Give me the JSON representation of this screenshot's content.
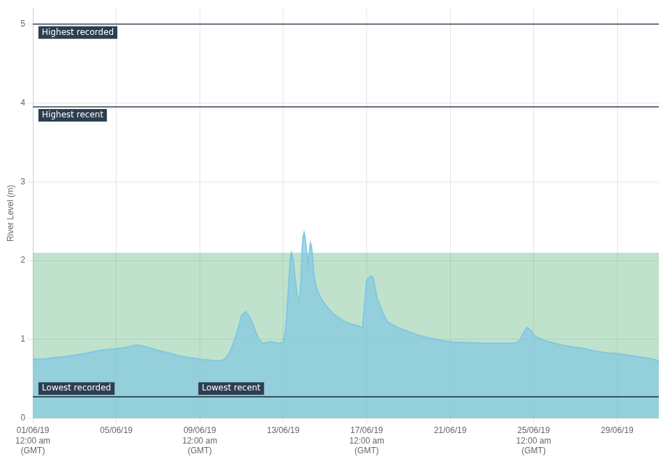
{
  "chart_data": {
    "type": "line",
    "ylabel": "River Level (m)",
    "color": "#7ec8e3",
    "x": [
      0,
      0.25,
      0.5,
      1.0,
      1.5,
      2.0,
      2.5,
      3.0,
      3.5,
      4.0,
      4.5,
      5.0,
      5.5,
      6.0,
      6.5,
      7.0,
      7.5,
      8.0,
      8.2,
      8.4,
      8.6,
      8.8,
      9.0,
      9.2,
      9.4,
      9.5,
      9.6,
      9.7,
      9.8,
      9.9,
      10.0,
      10.1,
      10.2,
      10.3,
      10.4,
      10.5,
      10.6,
      10.7,
      10.8,
      10.9,
      11.0,
      11.2,
      11.4,
      11.6,
      11.8,
      12.0,
      12.1,
      12.15,
      12.2,
      12.25,
      12.3,
      12.35,
      12.4,
      12.45,
      12.5,
      12.55,
      12.6,
      12.65,
      12.7,
      12.75,
      12.8,
      12.85,
      12.9,
      12.95,
      13.0,
      13.05,
      13.1,
      13.15,
      13.2,
      13.25,
      13.3,
      13.35,
      13.4,
      13.45,
      13.5,
      13.6,
      13.7,
      13.8,
      13.9,
      14.0,
      14.2,
      14.5,
      14.8,
      15.0,
      15.2,
      15.5,
      15.8,
      16.0,
      16.1,
      16.2,
      16.25,
      16.3,
      16.35,
      16.4,
      16.5,
      16.6,
      16.7,
      16.8,
      17.0,
      17.5,
      18.0,
      18.5,
      19.0,
      19.5,
      20.0,
      20.5,
      21.0,
      21.5,
      22.0,
      22.5,
      23.0,
      23.2,
      23.3,
      23.4,
      23.5,
      23.6,
      23.7,
      23.8,
      23.9,
      24.0,
      24.2,
      24.5,
      25.0,
      25.5,
      26.0,
      26.5,
      27.0,
      27.5,
      28.0,
      28.5,
      29.0,
      29.5,
      30.0
    ],
    "values": [
      0.75,
      0.75,
      0.75,
      0.77,
      0.78,
      0.8,
      0.82,
      0.85,
      0.87,
      0.88,
      0.9,
      0.93,
      0.9,
      0.86,
      0.83,
      0.79,
      0.77,
      0.75,
      0.74,
      0.74,
      0.73,
      0.73,
      0.73,
      0.75,
      0.82,
      0.88,
      0.95,
      1.02,
      1.1,
      1.2,
      1.3,
      1.33,
      1.35,
      1.32,
      1.28,
      1.22,
      1.15,
      1.08,
      1.02,
      0.98,
      0.95,
      0.96,
      0.97,
      0.96,
      0.95,
      0.97,
      1.1,
      1.25,
      1.45,
      1.65,
      1.85,
      2.05,
      2.1,
      2.05,
      1.95,
      1.82,
      1.7,
      1.6,
      1.52,
      1.48,
      1.55,
      1.75,
      2.1,
      2.3,
      2.35,
      2.28,
      2.15,
      2.05,
      1.95,
      2.1,
      2.22,
      2.18,
      2.05,
      1.88,
      1.75,
      1.65,
      1.58,
      1.52,
      1.48,
      1.45,
      1.38,
      1.3,
      1.25,
      1.22,
      1.2,
      1.18,
      1.15,
      1.75,
      1.78,
      1.8,
      1.8,
      1.78,
      1.72,
      1.65,
      1.52,
      1.45,
      1.38,
      1.32,
      1.22,
      1.15,
      1.1,
      1.05,
      1.02,
      0.99,
      0.97,
      0.96,
      0.96,
      0.95,
      0.95,
      0.95,
      0.95,
      0.96,
      0.98,
      1.02,
      1.08,
      1.12,
      1.15,
      1.13,
      1.1,
      1.06,
      1.02,
      0.99,
      0.95,
      0.92,
      0.9,
      0.88,
      0.85,
      0.83,
      0.82,
      0.8,
      0.78,
      0.76,
      0.73
    ],
    "xlim": [
      0,
      30
    ],
    "xticks": [
      {
        "value": 0,
        "label": "01/06/19\n12:00 am\n(GMT)"
      },
      {
        "value": 4,
        "label": "05/06/19"
      },
      {
        "value": 8,
        "label": "09/06/19\n12:00 am\n(GMT)"
      },
      {
        "value": 12,
        "label": "13/06/19"
      },
      {
        "value": 16,
        "label": "17/06/19\n12:00 am\n(GMT)"
      },
      {
        "value": 20,
        "label": "21/06/19"
      },
      {
        "value": 24,
        "label": "25/06/19\n12:00 am\n(GMT)"
      },
      {
        "value": 28,
        "label": "29/06/19"
      }
    ],
    "ylim": [
      0,
      5.2
    ],
    "yticks": [
      0,
      1,
      2,
      3,
      4,
      5
    ],
    "grid": true,
    "bands": [
      {
        "from": 0,
        "to": 2.1,
        "color": "#4aaa6a"
      }
    ],
    "annotations": [
      {
        "text": "Highest recorded",
        "y": 5.0,
        "color": "#2c3e50"
      },
      {
        "text": "Highest recent",
        "y": 3.95,
        "color": "#2c3e50"
      },
      {
        "text": "Lowest recorded",
        "y": 0.27,
        "color": "#2c3e50"
      },
      {
        "text": "Lowest recent",
        "y": 0.27,
        "color": "#2c3e50"
      }
    ]
  }
}
